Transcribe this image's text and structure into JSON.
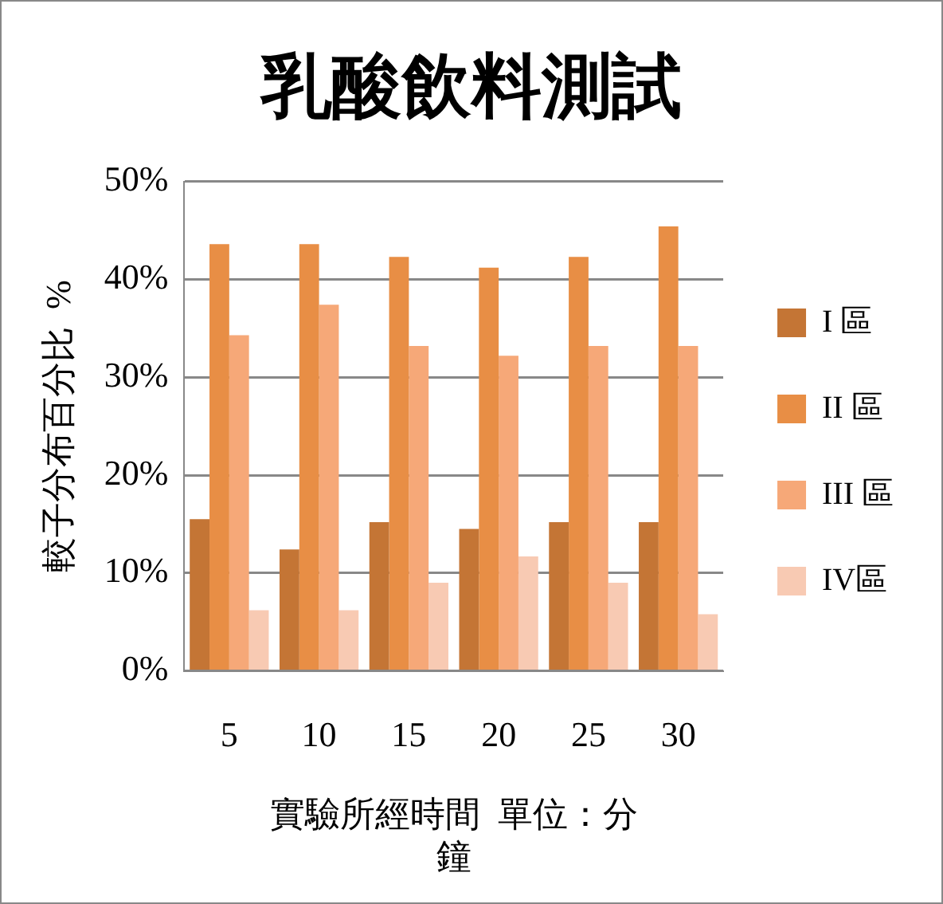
{
  "chart_data": {
    "type": "bar",
    "title": "乳酸飲料測試",
    "xlabel": "實驗所經時間  單位：分鐘",
    "ylabel": "較子分布百分比  %",
    "categories": [
      "5",
      "10",
      "15",
      "20",
      "25",
      "30"
    ],
    "series": [
      {
        "name": "I 區",
        "color": "#c47535",
        "values": [
          15.5,
          12.4,
          15.2,
          14.5,
          15.2,
          15.2
        ]
      },
      {
        "name": "II 區",
        "color": "#e88e45",
        "values": [
          43.6,
          43.6,
          42.3,
          41.2,
          42.3,
          45.4
        ]
      },
      {
        "name": "III 區",
        "color": "#f6a878",
        "values": [
          34.3,
          37.4,
          33.2,
          32.2,
          33.2,
          33.2
        ]
      },
      {
        "name": "IV區",
        "color": "#f8cab3",
        "values": [
          6.2,
          6.2,
          9.0,
          11.7,
          9.0,
          5.8
        ]
      }
    ],
    "ylim": [
      0,
      50
    ],
    "yticks": [
      {
        "value": 0,
        "label": "0%"
      },
      {
        "value": 10,
        "label": "10%"
      },
      {
        "value": 20,
        "label": "20%"
      },
      {
        "value": 30,
        "label": "30%"
      },
      {
        "value": 40,
        "label": "40%"
      },
      {
        "value": 50,
        "label": "50%"
      }
    ],
    "grid": "y",
    "legend": "right"
  }
}
